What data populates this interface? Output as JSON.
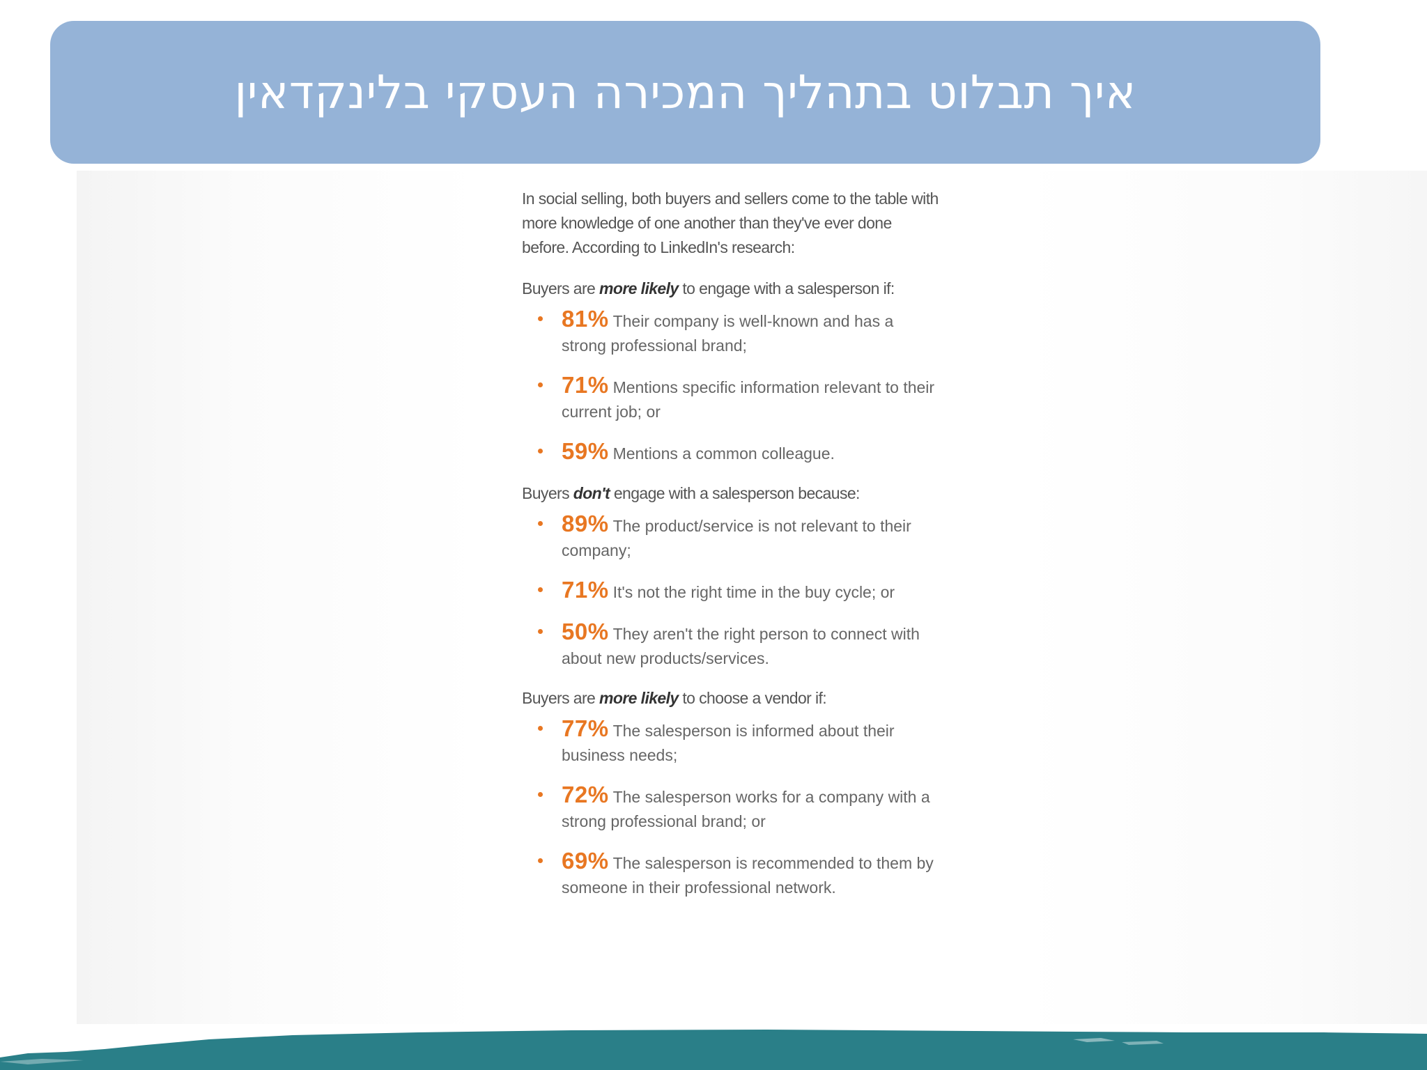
{
  "slide": {
    "title": "איך תבלוט בתהליך המכירה העסקי בלינקדאין"
  },
  "article": {
    "intro": "In social selling, both buyers and sellers come to the table with more knowledge of one another than they've ever done before. According to LinkedIn's research:",
    "sections": [
      {
        "lead_before": "Buyers are ",
        "lead_emphasis": "more likely",
        "lead_after": " to engage with a salesperson if:",
        "items": [
          {
            "percent": "81%",
            "text": "Their company is well-known and has a strong professional brand;"
          },
          {
            "percent": "71%",
            "text": "Mentions specific information relevant to their current job; or"
          },
          {
            "percent": "59%",
            "text": "Mentions a common colleague."
          }
        ]
      },
      {
        "lead_before": "Buyers ",
        "lead_emphasis": "don't",
        "lead_after": " engage with a salesperson because:",
        "items": [
          {
            "percent": "89%",
            "text": "The product/service is not relevant to their company;"
          },
          {
            "percent": "71%",
            "text": "It's not the right time in the buy cycle; or"
          },
          {
            "percent": "50%",
            "text": "They aren't the right person to connect with about new products/services."
          }
        ]
      },
      {
        "lead_before": "Buyers are ",
        "lead_emphasis": "more likely",
        "lead_after": " to choose a vendor if:",
        "items": [
          {
            "percent": "77%",
            "text": "The salesperson is informed about their business needs;"
          },
          {
            "percent": "72%",
            "text": "The salesperson works for a company with a strong professional brand; or"
          },
          {
            "percent": "69%",
            "text": "The salesperson is recommended to them by someone in their professional network."
          }
        ]
      }
    ]
  },
  "colors": {
    "title_bar": "#95b3d7",
    "title_text": "#ffffff",
    "accent_orange": "#e87722",
    "body_text": "#555555",
    "footer_teal": "#2a7f88"
  }
}
